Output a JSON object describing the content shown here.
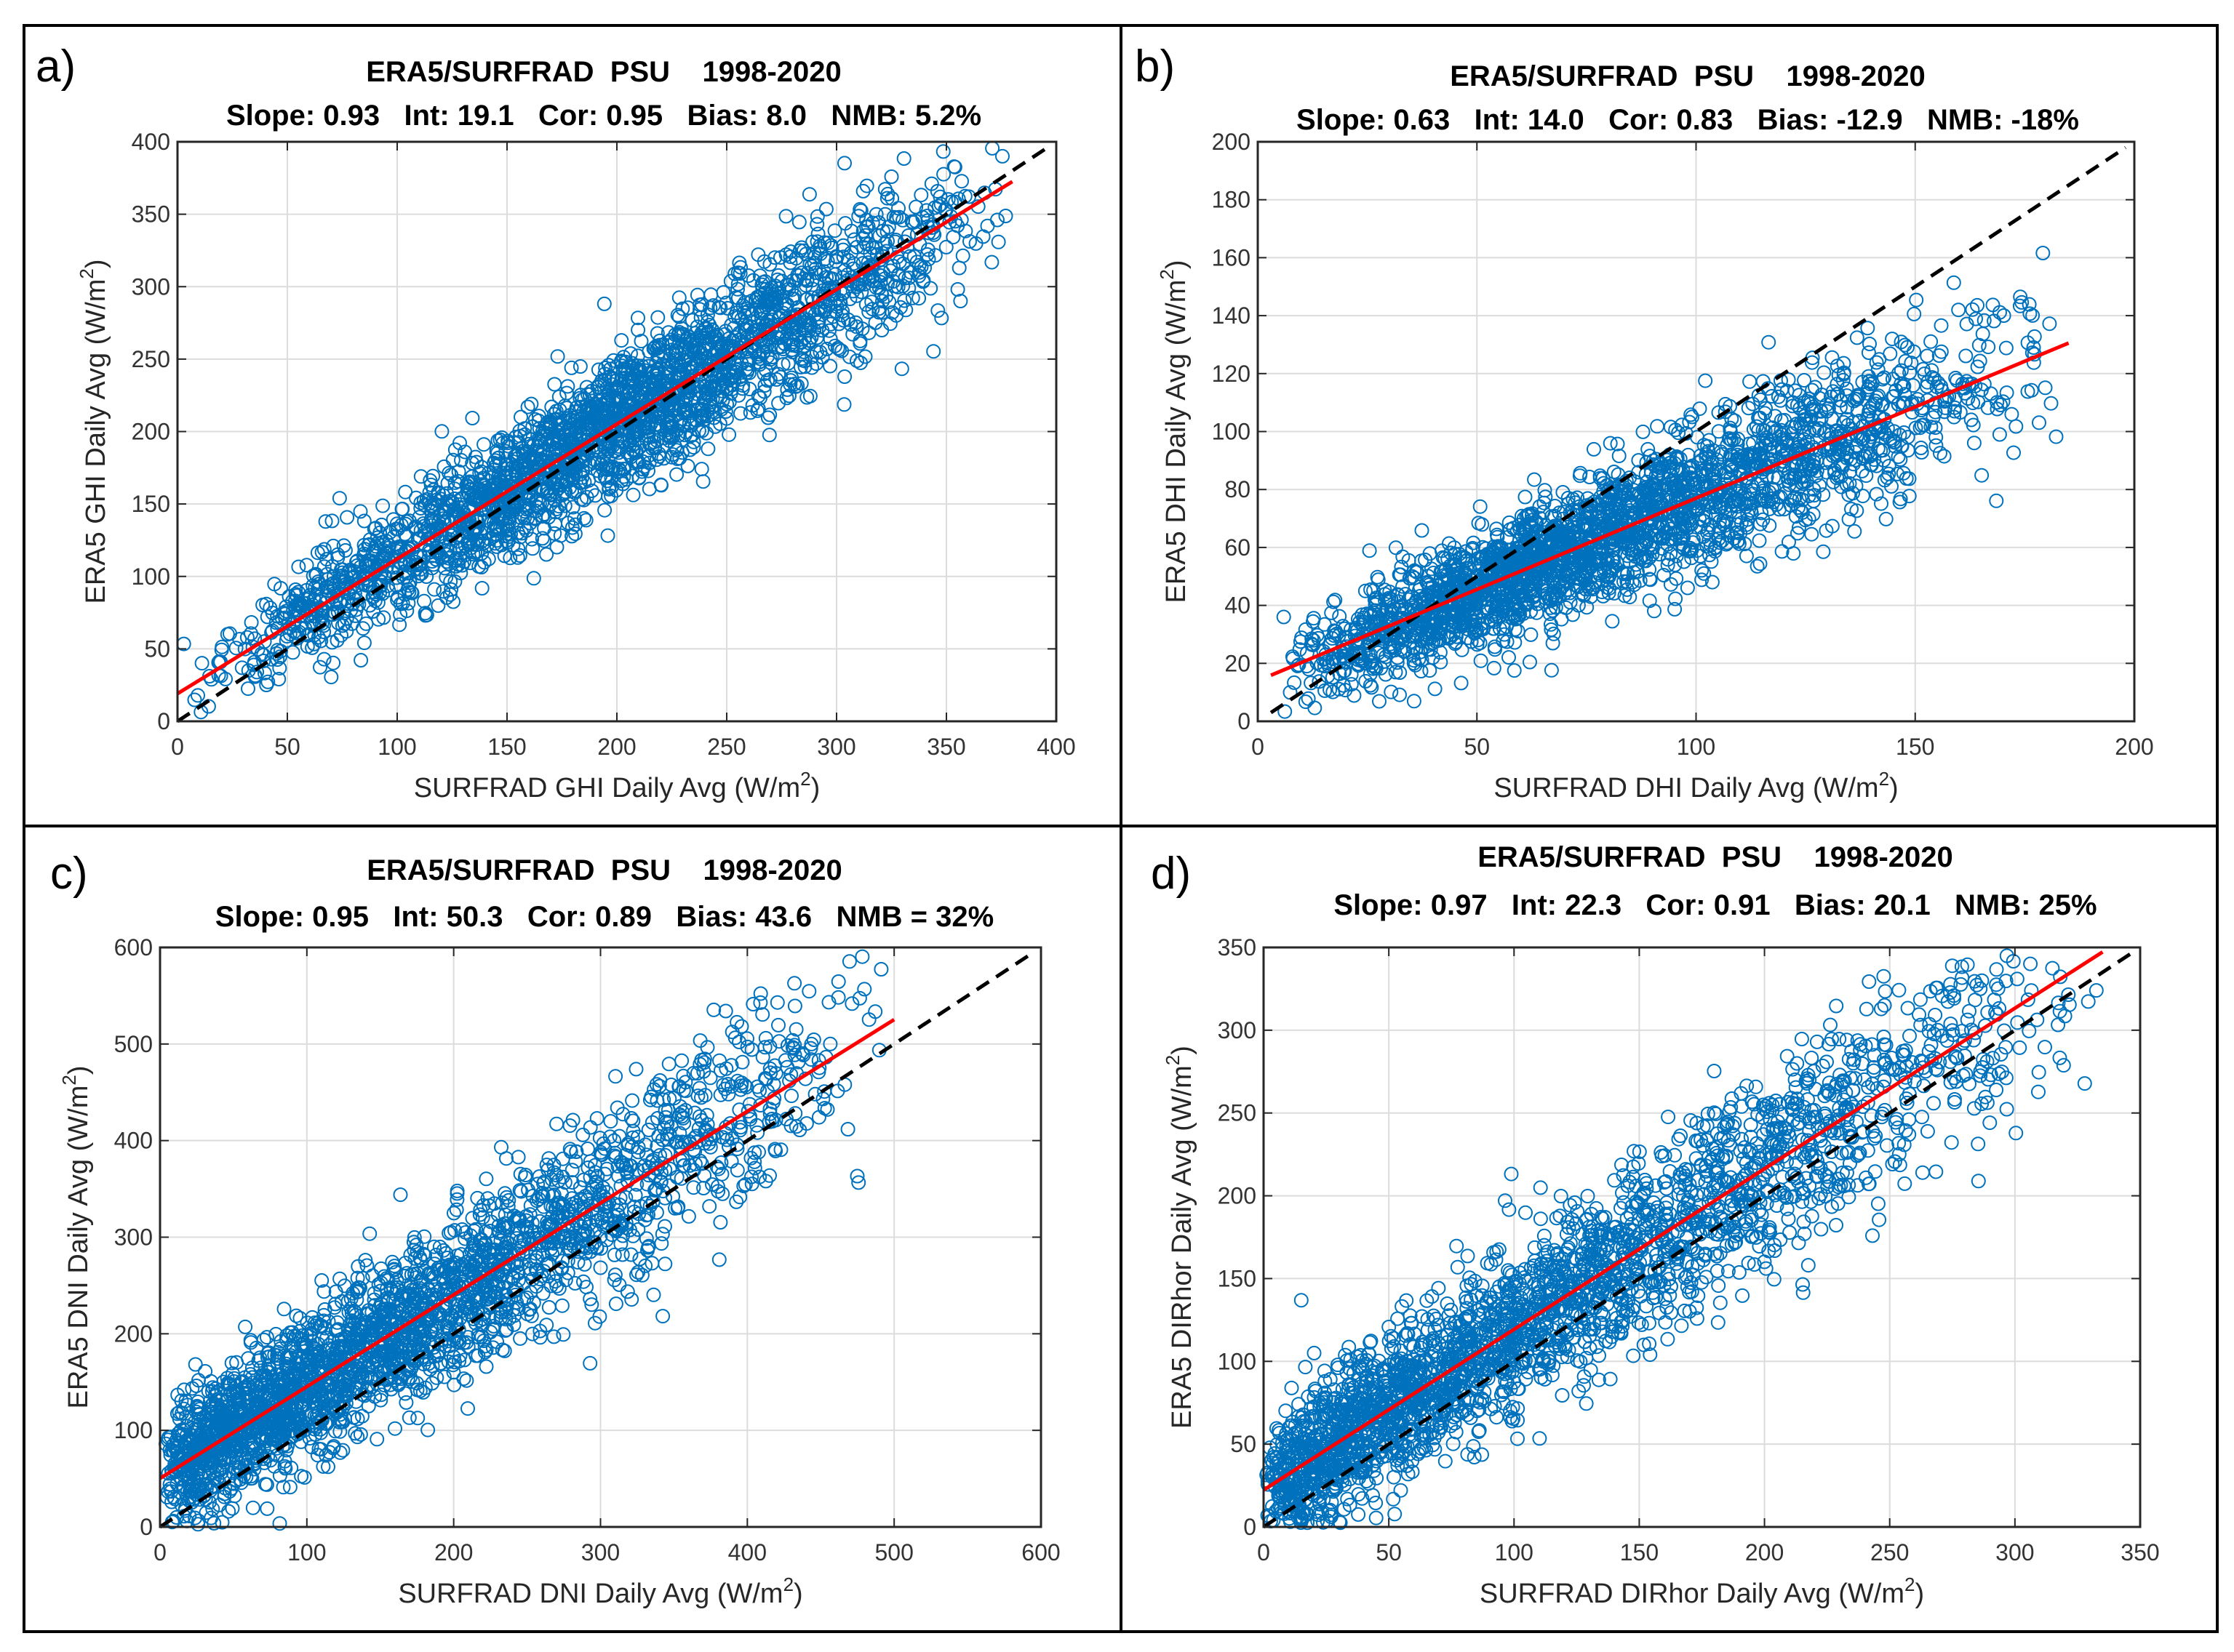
{
  "chart_data": [
    {
      "type": "scatter",
      "panel_label": "a)",
      "title": "ERA5/SURFRAD  PSU    1998-2020",
      "stats": "Slope: 0.93   Int: 19.1   Cor: 0.95   Bias: 8.0   NMB: 5.2%",
      "xlabel": "SURFRAD GHI Daily Avg (W/m",
      "ylabel": "ERA5 GHI Daily Avg (W/m",
      "label_superscript": "2",
      "label_suffix": ")",
      "xlim": [
        0,
        400
      ],
      "ylim": [
        0,
        400
      ],
      "xticks": [
        0,
        50,
        100,
        150,
        200,
        250,
        300,
        350,
        400
      ],
      "yticks": [
        0,
        50,
        100,
        150,
        200,
        250,
        300,
        350,
        400
      ],
      "grid": true,
      "regression": {
        "slope": 0.93,
        "intercept": 19.1,
        "x_range": [
          0,
          380
        ],
        "color": "#ff0000"
      },
      "one_to_one": {
        "x_range": [
          0,
          395
        ],
        "color": "#000000"
      },
      "point_cloud": {
        "n": 2600,
        "x_range": [
          2,
          380
        ],
        "x_mode": 200,
        "noise_sd": 26,
        "color": "#0072BD",
        "seed": 11
      }
    },
    {
      "type": "scatter",
      "panel_label": "b)",
      "title": "ERA5/SURFRAD  PSU    1998-2020",
      "stats": "Slope: 0.63   Int: 14.0   Cor: 0.83   Bias: -12.9   NMB: -18%",
      "xlabel": "SURFRAD DHI Daily Avg (W/m",
      "ylabel": "ERA5 DHI Daily Avg (W/m",
      "label_superscript": "2",
      "label_suffix": ")",
      "xlim": [
        0,
        200
      ],
      "ylim": [
        0,
        200
      ],
      "xticks": [
        0,
        50,
        100,
        150,
        200
      ],
      "yticks": [
        0,
        20,
        40,
        60,
        80,
        100,
        120,
        140,
        160,
        180,
        200
      ],
      "grid": true,
      "regression": {
        "slope": 0.63,
        "intercept": 14.0,
        "x_range": [
          3,
          185
        ],
        "color": "#ff0000"
      },
      "one_to_one": {
        "x_range": [
          3,
          198
        ],
        "color": "#000000"
      },
      "point_cloud": {
        "n": 2600,
        "x_range": [
          3,
          185
        ],
        "x_mode": 60,
        "noise_sd": 13,
        "color": "#0072BD",
        "seed": 23
      }
    },
    {
      "type": "scatter",
      "panel_label": "c)",
      "title": "ERA5/SURFRAD  PSU    1998-2020",
      "stats": "Slope: 0.95   Int: 50.3   Cor: 0.89   Bias: 43.6   NMB = 32%",
      "xlabel": "SURFRAD DNI Daily Avg (W/m",
      "ylabel": "ERA5 DNI Daily Avg (W/m",
      "label_superscript": "2",
      "label_suffix": ")",
      "xlim": [
        0,
        600
      ],
      "ylim": [
        0,
        600
      ],
      "xticks": [
        0,
        100,
        200,
        300,
        400,
        500,
        600
      ],
      "yticks": [
        0,
        100,
        200,
        300,
        400,
        500,
        600
      ],
      "grid": true,
      "regression": {
        "slope": 0.95,
        "intercept": 50.3,
        "x_range": [
          0,
          500
        ],
        "color": "#ff0000"
      },
      "one_to_one": {
        "x_range": [
          0,
          595
        ],
        "color": "#000000"
      },
      "point_cloud": {
        "n": 2600,
        "x_range": [
          0,
          500
        ],
        "x_mode": 20,
        "noise_sd": 50,
        "color": "#0072BD",
        "seed": 37
      }
    },
    {
      "type": "scatter",
      "panel_label": "d)",
      "title": "ERA5/SURFRAD  PSU    1998-2020",
      "stats": "Slope: 0.97   Int: 22.3   Cor: 0.91   Bias: 20.1   NMB: 25%",
      "xlabel": "SURFRAD DIRhor Daily Avg (W/m",
      "ylabel": "ERA5 DIRhor Daily Avg (W/m",
      "label_superscript": "2",
      "label_suffix": ")",
      "xlim": [
        0,
        350
      ],
      "ylim": [
        0,
        350
      ],
      "xticks": [
        0,
        50,
        100,
        150,
        200,
        250,
        300,
        350
      ],
      "yticks": [
        0,
        50,
        100,
        150,
        200,
        250,
        300,
        350
      ],
      "grid": true,
      "regression": {
        "slope": 0.97,
        "intercept": 22.3,
        "x_range": [
          0,
          335
        ],
        "color": "#ff0000"
      },
      "one_to_one": {
        "x_range": [
          0,
          348
        ],
        "color": "#000000"
      },
      "point_cloud": {
        "n": 2600,
        "x_range": [
          0,
          335
        ],
        "x_mode": 10,
        "noise_sd": 32,
        "color": "#0072BD",
        "seed": 51
      }
    }
  ]
}
